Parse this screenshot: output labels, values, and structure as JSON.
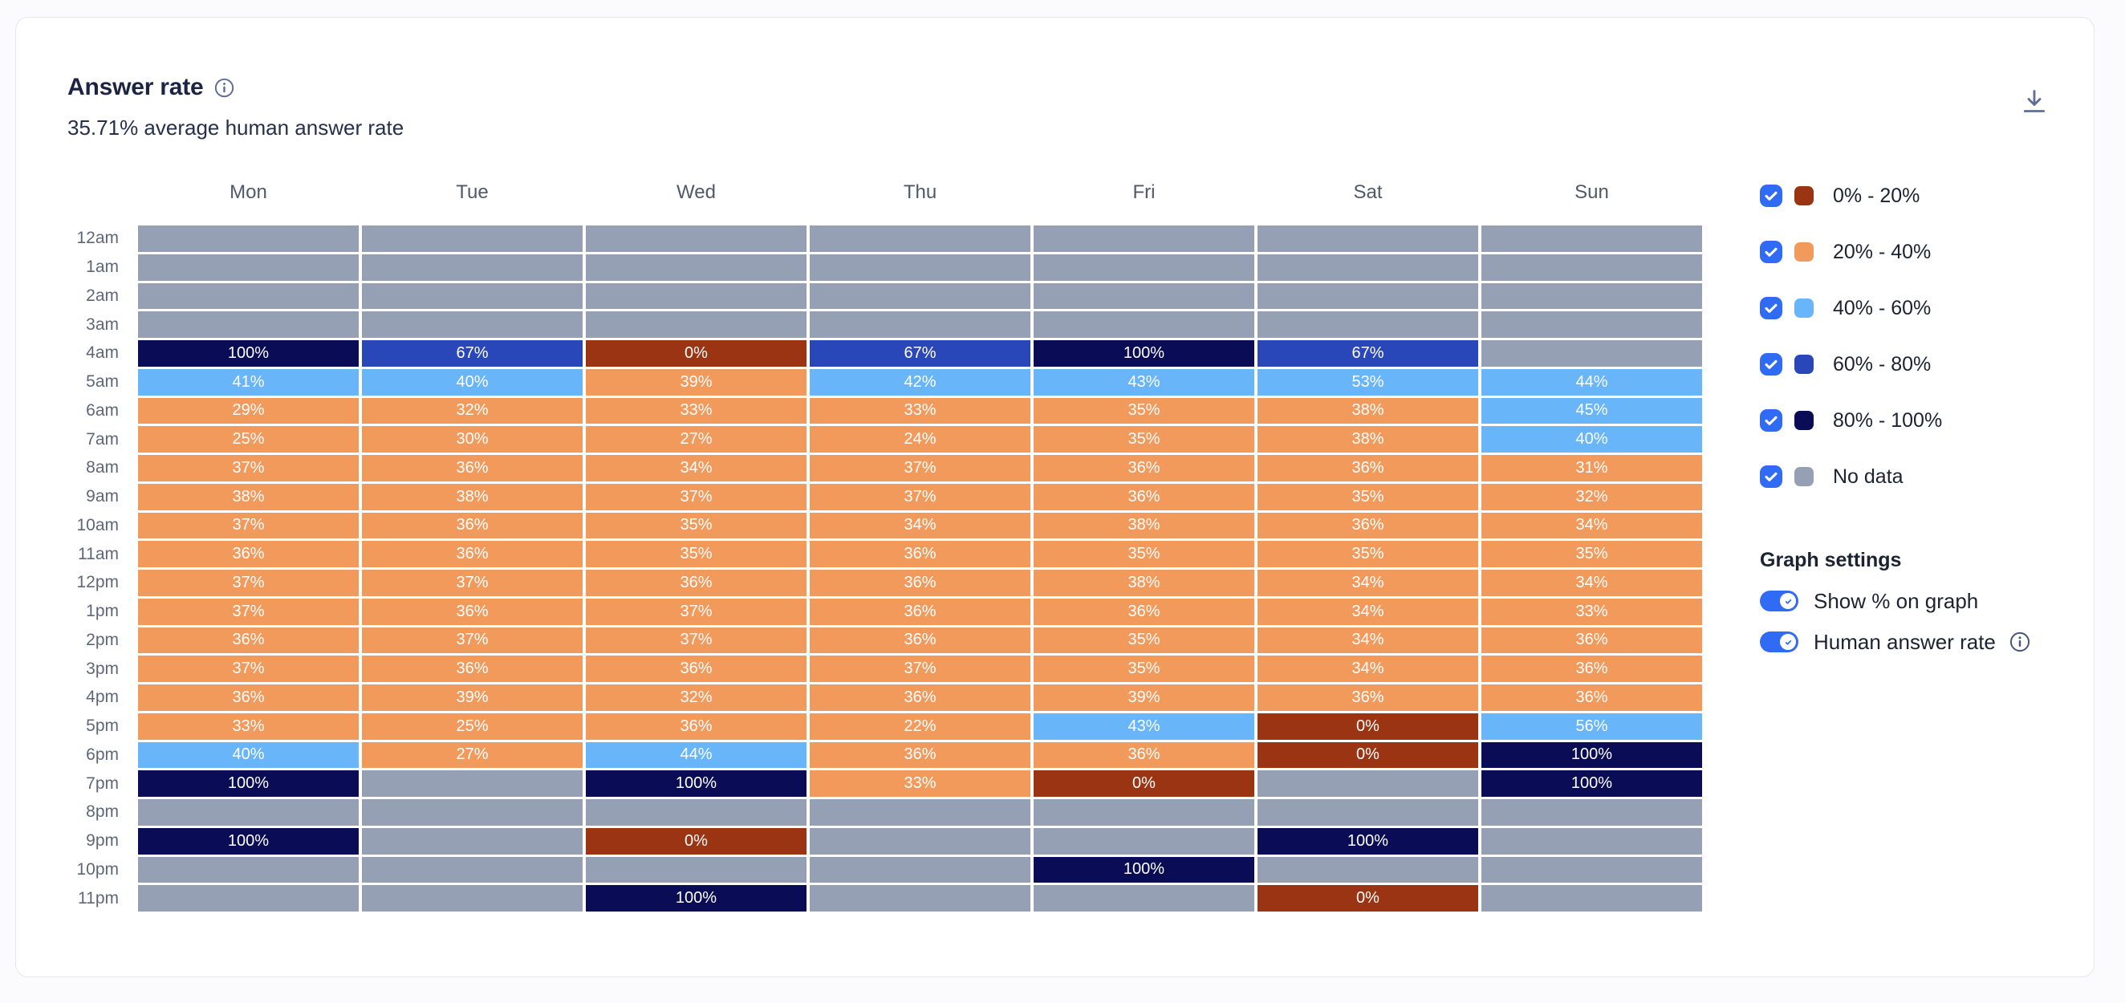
{
  "header": {
    "title": "Answer rate",
    "subtitle": "35.71% average human answer rate"
  },
  "chart_data": {
    "type": "heatmap",
    "title": "Answer rate",
    "subtitle": "35.71% average human answer rate",
    "columns": [
      "Mon",
      "Tue",
      "Wed",
      "Thu",
      "Fri",
      "Sat",
      "Sun"
    ],
    "rows": [
      "12am",
      "1am",
      "2am",
      "3am",
      "4am",
      "5am",
      "6am",
      "7am",
      "8am",
      "9am",
      "10am",
      "11am",
      "12pm",
      "1pm",
      "2pm",
      "3pm",
      "4pm",
      "5pm",
      "6pm",
      "7pm",
      "8pm",
      "9pm",
      "10pm",
      "11pm"
    ],
    "values": [
      [
        null,
        null,
        null,
        null,
        null,
        null,
        null
      ],
      [
        null,
        null,
        null,
        null,
        null,
        null,
        null
      ],
      [
        null,
        null,
        null,
        null,
        null,
        null,
        null
      ],
      [
        null,
        null,
        null,
        null,
        null,
        null,
        null
      ],
      [
        100,
        67,
        0,
        67,
        100,
        67,
        null
      ],
      [
        41,
        40,
        39,
        42,
        43,
        53,
        44
      ],
      [
        29,
        32,
        33,
        33,
        35,
        38,
        45
      ],
      [
        25,
        30,
        27,
        24,
        35,
        38,
        40
      ],
      [
        37,
        36,
        34,
        37,
        36,
        36,
        31
      ],
      [
        38,
        38,
        37,
        37,
        36,
        35,
        32
      ],
      [
        37,
        36,
        35,
        34,
        38,
        36,
        34
      ],
      [
        36,
        36,
        35,
        36,
        35,
        35,
        35
      ],
      [
        37,
        37,
        36,
        36,
        38,
        34,
        34
      ],
      [
        37,
        36,
        37,
        36,
        36,
        34,
        33
      ],
      [
        36,
        37,
        37,
        36,
        35,
        34,
        36
      ],
      [
        37,
        36,
        36,
        37,
        35,
        34,
        36
      ],
      [
        36,
        39,
        32,
        36,
        39,
        36,
        36
      ],
      [
        33,
        25,
        36,
        22,
        43,
        0,
        56
      ],
      [
        40,
        27,
        44,
        36,
        36,
        0,
        100
      ],
      [
        100,
        null,
        100,
        33,
        0,
        null,
        100
      ],
      [
        null,
        null,
        null,
        null,
        null,
        null,
        null
      ],
      [
        100,
        null,
        0,
        null,
        null,
        100,
        null
      ],
      [
        null,
        null,
        null,
        null,
        100,
        null,
        null
      ],
      [
        null,
        null,
        100,
        null,
        null,
        0,
        null
      ]
    ],
    "value_suffix": "%",
    "show_percent_labels": true,
    "buckets": [
      {
        "label": "0% - 20%",
        "min": 0,
        "max": 20,
        "color": "#9A3412",
        "checked": true
      },
      {
        "label": "20% - 40%",
        "min": 20,
        "max": 40,
        "color": "#F2995C",
        "checked": true
      },
      {
        "label": "40% - 60%",
        "min": 40,
        "max": 60,
        "color": "#68B5F9",
        "checked": true
      },
      {
        "label": "60% - 80%",
        "min": 60,
        "max": 80,
        "color": "#2A47BA",
        "checked": true
      },
      {
        "label": "80% - 100%",
        "min": 80,
        "max": 100,
        "color": "#0A0C55",
        "checked": true
      },
      {
        "label": "No data",
        "color": "#95A0B4",
        "no_data": true,
        "checked": true
      }
    ],
    "legend_position": "right"
  },
  "graph_settings": {
    "title": "Graph settings",
    "toggles": [
      {
        "label": "Show % on graph",
        "on": true,
        "has_info": false
      },
      {
        "label": "Human answer rate",
        "on": true,
        "has_info": true
      }
    ]
  },
  "colors": {
    "accent_blue": "#2F6BF5",
    "card_background": "#FFFFFF",
    "card_border": "#E5E6EF",
    "title_text": "#1B2443",
    "muted_label": "#5E6777"
  }
}
